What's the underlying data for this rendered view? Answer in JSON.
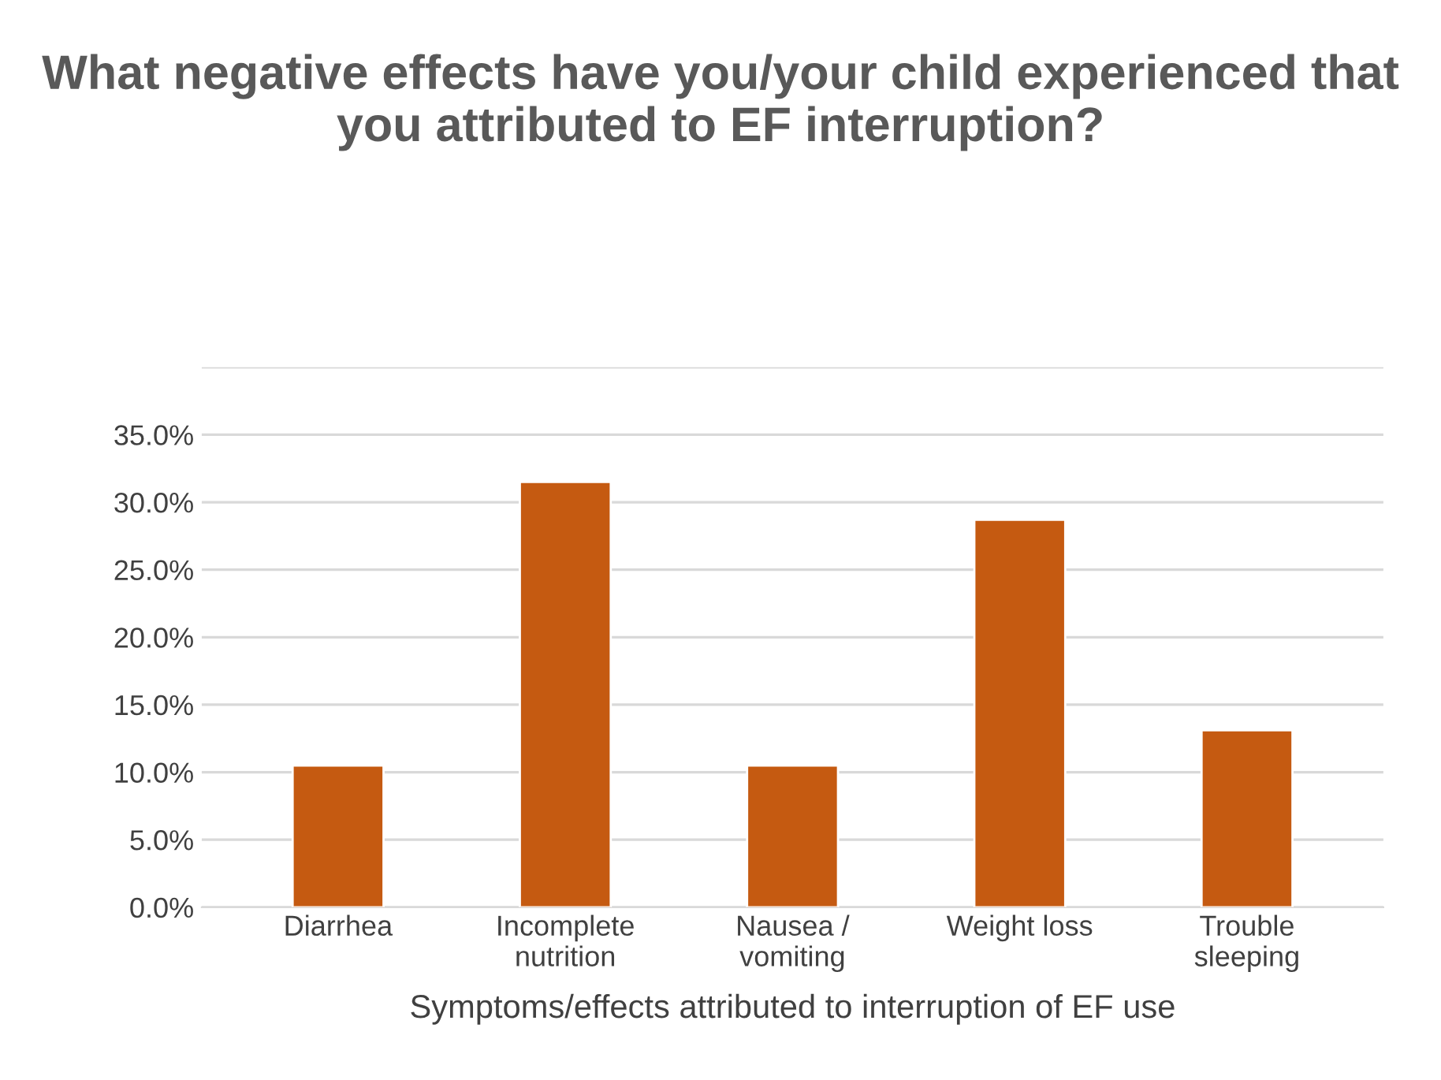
{
  "chart_data": {
    "type": "bar",
    "title": "What negative effects have you/your child experienced that you attributed to EF interruption?",
    "xlabel": "Symptoms/effects attributed to interruption of EF use",
    "categories": [
      "Diarrhea",
      "Incomplete\nnutrition",
      "Nausea /\nvomiting",
      "Weight loss",
      "Trouble\nsleeping"
    ],
    "values": [
      10.5,
      31.5,
      10.5,
      28.7,
      13.1
    ],
    "color": "#c55a11",
    "ylim": [
      0,
      40
    ],
    "yticks": [
      {
        "value": 0,
        "label": "0.0%"
      },
      {
        "value": 5,
        "label": "5.0%"
      },
      {
        "value": 10,
        "label": "10.0%"
      },
      {
        "value": 15,
        "label": "15.0%"
      },
      {
        "value": 20,
        "label": "20.0%"
      },
      {
        "value": 25,
        "label": "25.0%"
      },
      {
        "value": 30,
        "label": "30.0%"
      },
      {
        "value": 35,
        "label": "35.0%"
      },
      {
        "value": 40,
        "label": null
      }
    ],
    "grid": "y"
  }
}
